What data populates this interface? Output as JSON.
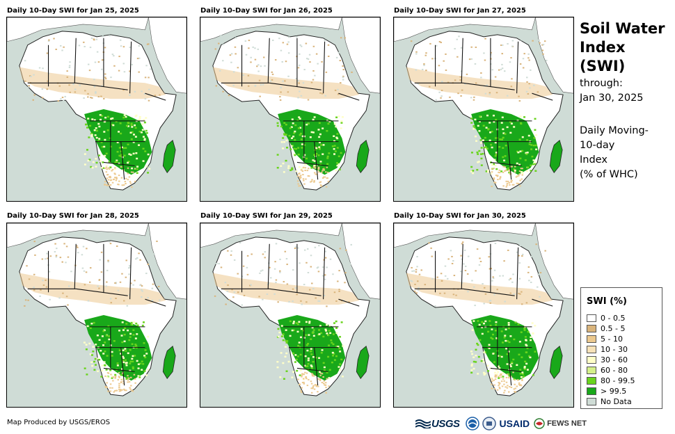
{
  "panels": [
    {
      "title": "Daily 10-Day SWI for Jan 25, 2025"
    },
    {
      "title": "Daily 10-Day SWI for Jan 26, 2025"
    },
    {
      "title": "Daily 10-Day SWI for Jan 27, 2025"
    },
    {
      "title": "Daily 10-Day SWI for Jan 28, 2025"
    },
    {
      "title": "Daily 10-Day SWI for Jan 29, 2025"
    },
    {
      "title": "Daily 10-Day SWI for Jan 30, 2025"
    }
  ],
  "sidebar": {
    "title_line1": "Soil Water",
    "title_line2": "Index (SWI)",
    "through_label": "through:",
    "through_date": "Jan 30, 2025",
    "desc_line1": "Daily Moving-",
    "desc_line2": "10-day",
    "desc_line3": "Index",
    "desc_line4": "(% of WHC)"
  },
  "legend": {
    "title": "SWI (%)",
    "items": [
      {
        "label": "0 - 0.5",
        "color": "#ffffff"
      },
      {
        "label": "0.5 - 5",
        "color": "#d9b47c"
      },
      {
        "label": "5 - 10",
        "color": "#ecc98f"
      },
      {
        "label": "10 - 30",
        "color": "#f7e2b8"
      },
      {
        "label": "30 - 60",
        "color": "#ffffc8"
      },
      {
        "label": "60 - 80",
        "color": "#d4f08a"
      },
      {
        "label": "80 - 99.5",
        "color": "#6ad41e"
      },
      {
        "label": "> 99.5",
        "color": "#19a81a"
      },
      {
        "label": "No Data",
        "color": "#cfdcd6"
      }
    ]
  },
  "footer": {
    "credit": "Map Produced by USGS/EROS"
  },
  "logos": {
    "usgs": "USGS",
    "usaid": "USAID",
    "fews": "FEWS NET"
  },
  "colors": {
    "ocean": "#cfdcd6",
    "land": "#ffffff",
    "wet": "#19a81a",
    "moist": "#6ad41e",
    "dry": "#ecc98f"
  }
}
